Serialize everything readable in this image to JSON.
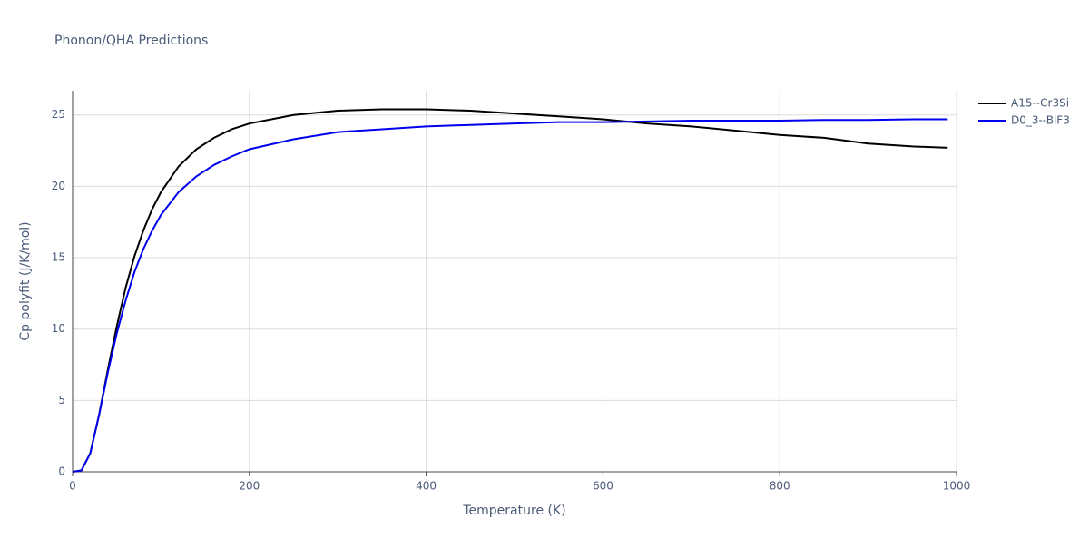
{
  "chart_data": {
    "type": "line",
    "title": "Phonon/QHA Predictions",
    "x_label": "Temperature (K)",
    "y_label": "Cp polyfit (J/K/mol)",
    "x": [
      0,
      10,
      20,
      30,
      40,
      50,
      60,
      70,
      80,
      90,
      100,
      120,
      140,
      160,
      180,
      200,
      250,
      300,
      350,
      400,
      450,
      500,
      550,
      600,
      650,
      700,
      750,
      800,
      850,
      900,
      950,
      990
    ],
    "series": [
      {
        "name": "A15--Cr3Si",
        "color": "#000000",
        "values": [
          0,
          0.1,
          1.3,
          4.0,
          7.2,
          10.2,
          12.9,
          15.1,
          16.9,
          18.4,
          19.6,
          21.4,
          22.6,
          23.4,
          24.0,
          24.4,
          25.0,
          25.3,
          25.4,
          25.4,
          25.3,
          25.1,
          24.9,
          24.7,
          24.4,
          24.2,
          23.9,
          23.6,
          23.4,
          23.0,
          22.8,
          22.7
        ]
      },
      {
        "name": "D0_3--BiF3",
        "color": "#0000ee",
        "values": [
          0,
          0.1,
          1.3,
          4.0,
          7.0,
          9.7,
          12.0,
          14.0,
          15.6,
          16.9,
          18.0,
          19.6,
          20.7,
          21.5,
          22.1,
          22.6,
          23.3,
          23.8,
          24.0,
          24.2,
          24.3,
          24.4,
          24.5,
          24.5,
          24.55,
          24.6,
          24.6,
          24.6,
          24.65,
          24.65,
          24.7,
          24.7
        ]
      }
    ],
    "xlim": [
      0,
      1000
    ],
    "xticks": [
      0,
      200,
      400,
      600,
      800,
      1000
    ],
    "ylim": [
      0,
      26.7
    ],
    "yticks": [
      0,
      5,
      10,
      15,
      20,
      25
    ],
    "grid": true,
    "legend": "top-right"
  }
}
